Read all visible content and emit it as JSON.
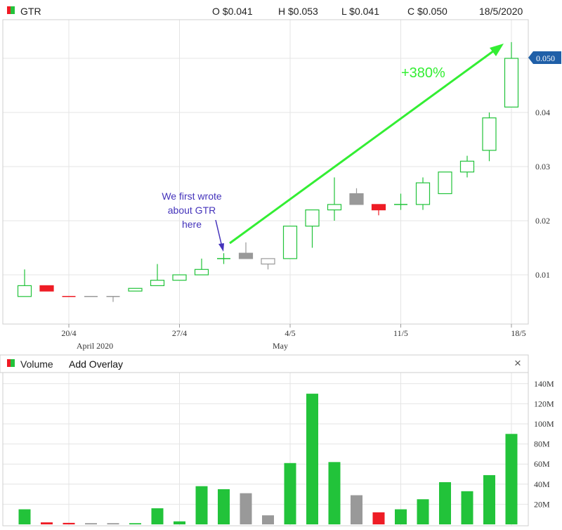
{
  "header": {
    "ticker": "GTR",
    "open": "O $0.041",
    "high": "H $0.053",
    "low": "L $0.041",
    "close": "C $0.050",
    "date": "18/5/2020"
  },
  "price_badge": "0.050",
  "volume_panel": {
    "title": "Volume",
    "add_overlay": "Add Overlay",
    "close_symbol": "×"
  },
  "annotations": {
    "note": [
      "We first wrote",
      "about GTR",
      "here"
    ],
    "gain": "+380%"
  },
  "colors": {
    "up": "#22c33a",
    "down": "#ee1c25",
    "neutral": "#999999",
    "arrow": "#33ee33",
    "note_text": "#4433bb",
    "badge": "#1f5fa8"
  },
  "chart_data": [
    {
      "type": "candlestick",
      "title": "",
      "x_ticks": [
        "20/4",
        "27/4",
        "4/5",
        "11/5",
        "18/5"
      ],
      "x_month_labels": [
        "April 2020",
        "May"
      ],
      "y_ticks": [
        "0.01",
        "0.02",
        "0.03",
        "0.04"
      ],
      "ylim": [
        0,
        0.056
      ],
      "grid": true,
      "candles": [
        {
          "date": "16/4",
          "open": 0.006,
          "high": 0.011,
          "low": 0.006,
          "close": 0.008,
          "color": "up"
        },
        {
          "date": "17/4",
          "open": 0.008,
          "high": 0.008,
          "low": 0.007,
          "close": 0.007,
          "color": "down"
        },
        {
          "date": "20/4",
          "open": 0.006,
          "high": 0.006,
          "low": 0.006,
          "close": 0.006,
          "color": "down"
        },
        {
          "date": "21/4",
          "open": 0.006,
          "high": 0.006,
          "low": 0.006,
          "close": 0.006,
          "color": "neutral"
        },
        {
          "date": "22/4",
          "open": 0.006,
          "high": 0.006,
          "low": 0.005,
          "close": 0.006,
          "color": "neutral"
        },
        {
          "date": "23/4",
          "open": 0.007,
          "high": 0.0075,
          "low": 0.007,
          "close": 0.0075,
          "color": "up"
        },
        {
          "date": "24/4",
          "open": 0.008,
          "high": 0.012,
          "low": 0.008,
          "close": 0.009,
          "color": "up"
        },
        {
          "date": "27/4",
          "open": 0.009,
          "high": 0.01,
          "low": 0.009,
          "close": 0.01,
          "color": "up"
        },
        {
          "date": "28/4",
          "open": 0.01,
          "high": 0.013,
          "low": 0.01,
          "close": 0.011,
          "color": "up"
        },
        {
          "date": "29/4",
          "open": 0.013,
          "high": 0.014,
          "low": 0.012,
          "close": 0.013,
          "color": "up"
        },
        {
          "date": "30/4",
          "open": 0.014,
          "high": 0.016,
          "low": 0.013,
          "close": 0.013,
          "color": "neutral"
        },
        {
          "date": "1/5",
          "open": 0.013,
          "high": 0.013,
          "low": 0.011,
          "close": 0.012,
          "color": "neutral"
        },
        {
          "date": "4/5",
          "open": 0.013,
          "high": 0.019,
          "low": 0.013,
          "close": 0.019,
          "color": "up"
        },
        {
          "date": "5/5",
          "open": 0.019,
          "high": 0.022,
          "low": 0.015,
          "close": 0.022,
          "color": "up"
        },
        {
          "date": "6/5",
          "open": 0.022,
          "high": 0.028,
          "low": 0.02,
          "close": 0.023,
          "color": "up"
        },
        {
          "date": "7/5",
          "open": 0.025,
          "high": 0.026,
          "low": 0.023,
          "close": 0.023,
          "color": "neutral"
        },
        {
          "date": "8/5",
          "open": 0.023,
          "high": 0.023,
          "low": 0.021,
          "close": 0.022,
          "color": "down"
        },
        {
          "date": "11/5",
          "open": 0.023,
          "high": 0.025,
          "low": 0.022,
          "close": 0.023,
          "color": "up"
        },
        {
          "date": "12/5",
          "open": 0.023,
          "high": 0.028,
          "low": 0.022,
          "close": 0.027,
          "color": "up"
        },
        {
          "date": "13/5",
          "open": 0.025,
          "high": 0.029,
          "low": 0.025,
          "close": 0.029,
          "color": "up"
        },
        {
          "date": "14/5",
          "open": 0.029,
          "high": 0.032,
          "low": 0.028,
          "close": 0.031,
          "color": "up"
        },
        {
          "date": "15/5",
          "open": 0.033,
          "high": 0.04,
          "low": 0.031,
          "close": 0.039,
          "color": "up"
        },
        {
          "date": "18/5",
          "open": 0.041,
          "high": 0.053,
          "low": 0.041,
          "close": 0.05,
          "color": "up"
        }
      ]
    },
    {
      "type": "bar",
      "title": "Volume",
      "y_ticks": [
        "20M",
        "40M",
        "60M",
        "80M",
        "100M",
        "120M",
        "140M"
      ],
      "ylim": [
        0,
        150
      ],
      "unit": "M",
      "categories": [
        "16/4",
        "17/4",
        "20/4",
        "21/4",
        "22/4",
        "23/4",
        "24/4",
        "27/4",
        "28/4",
        "29/4",
        "30/4",
        "1/5",
        "4/5",
        "5/5",
        "6/5",
        "7/5",
        "8/5",
        "11/5",
        "12/5",
        "13/5",
        "14/5",
        "15/5",
        "18/5"
      ],
      "values": [
        15,
        2,
        1.5,
        1.2,
        1.2,
        1.2,
        16,
        3,
        38,
        35,
        31,
        9,
        61,
        130,
        62,
        29,
        12,
        15,
        25,
        42,
        33,
        49,
        90
      ],
      "colors": [
        "up",
        "down",
        "down",
        "neutral",
        "neutral",
        "up",
        "up",
        "up",
        "up",
        "up",
        "neutral",
        "neutral",
        "up",
        "up",
        "up",
        "neutral",
        "down",
        "up",
        "up",
        "up",
        "up",
        "up",
        "up"
      ]
    }
  ]
}
